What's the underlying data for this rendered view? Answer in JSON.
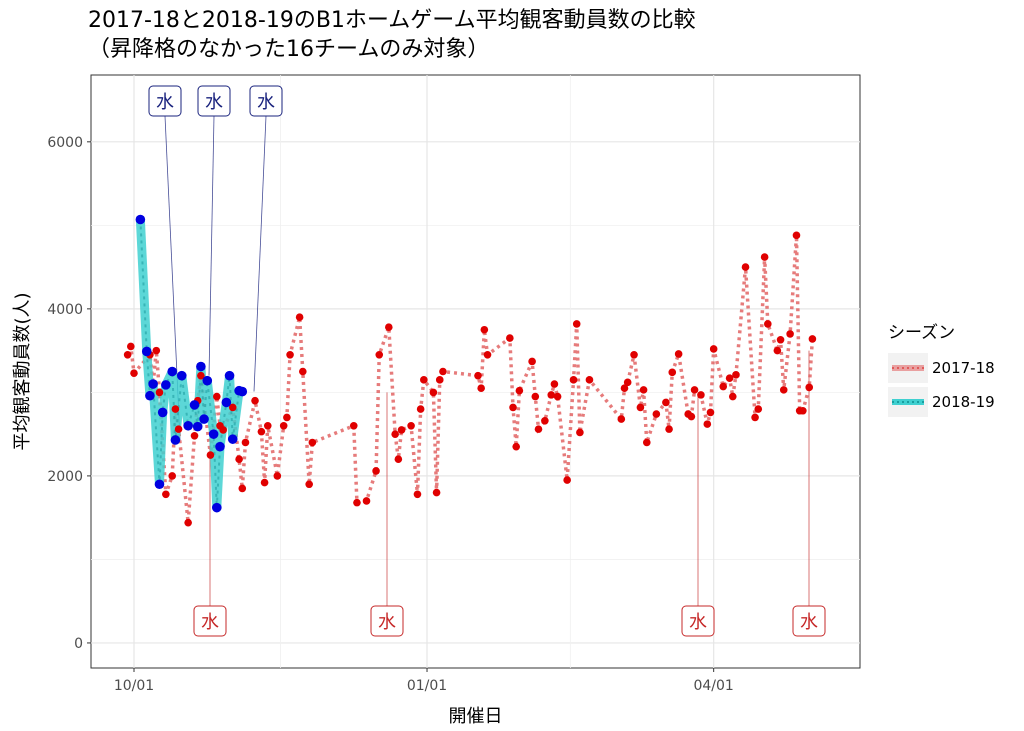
{
  "title_line1": "2017-18と2018-19のB1ホームゲーム平均観客動員数の比較",
  "title_line2": "（昇降格のなかった16チームのみ対象）",
  "chart_data": {
    "type": "line",
    "xlabel": "開催日",
    "ylabel": "平均観客動員数(人)",
    "xlim_days_label": "2017-18 season date axis",
    "x_ticks": [
      {
        "label": "10/01",
        "day": 0
      },
      {
        "label": "01/01",
        "day": 92
      },
      {
        "label": "04/01",
        "day": 182
      }
    ],
    "y_ticks": [
      0,
      2000,
      4000,
      6000
    ],
    "ylim": [
      -300,
      6800
    ],
    "grid": true,
    "legend_title": "シーズン",
    "legend_position": "right",
    "colors": {
      "s2017": "#e05a5a",
      "s2017_point": "#e00000",
      "s2018": "#3fd0d0",
      "s2018_point": "#0000e0"
    },
    "series": [
      {
        "name": "2017-18",
        "x": [
          "09/29",
          "09/30",
          "10/01",
          "10/06",
          "10/07",
          "10/08",
          "10/09",
          "10/11",
          "10/13",
          "10/14",
          "10/15",
          "10/18",
          "10/20",
          "10/21",
          "10/22",
          "10/25",
          "10/27",
          "10/28",
          "10/29",
          "11/01",
          "11/03",
          "11/04",
          "11/05",
          "11/08",
          "11/10",
          "11/11",
          "11/12",
          "11/15",
          "11/17",
          "11/18",
          "11/19",
          "11/22",
          "11/23",
          "11/25",
          "11/26",
          "12/09",
          "12/10",
          "12/13",
          "12/16",
          "12/17",
          "12/20",
          "12/22",
          "12/23",
          "12/24",
          "12/27",
          "12/29",
          "12/30",
          "12/31",
          "01/03",
          "01/04",
          "01/05",
          "01/06",
          "01/17",
          "01/18",
          "01/19",
          "01/20",
          "01/27",
          "01/28",
          "01/29",
          "01/30",
          "02/03",
          "02/04",
          "02/05",
          "02/07",
          "02/09",
          "02/10",
          "02/11",
          "02/14",
          "02/16",
          "02/17",
          "02/18",
          "02/21",
          "03/03",
          "03/04",
          "03/05",
          "03/07",
          "03/09",
          "03/10",
          "03/11",
          "03/14",
          "03/17",
          "03/18",
          "03/19",
          "03/21",
          "03/24",
          "03/25",
          "03/26",
          "03/28",
          "03/30",
          "03/31",
          "04/01",
          "04/04",
          "04/06",
          "04/07",
          "04/08",
          "04/11",
          "04/14",
          "04/15",
          "04/17",
          "04/18",
          "04/21",
          "04/22",
          "04/23",
          "04/25",
          "04/27",
          "04/28",
          "04/29",
          "05/01",
          "05/02"
        ],
        "values": [
          3450,
          3550,
          3230,
          3450,
          3100,
          3500,
          3000,
          1780,
          2000,
          2800,
          2560,
          1440,
          2480,
          2900,
          3200,
          2250,
          2950,
          2600,
          2550,
          2820,
          2200,
          1850,
          2400,
          2900,
          2530,
          1920,
          2600,
          2000,
          2600,
          2700,
          3450,
          3900,
          3250,
          1900,
          2400,
          2600,
          1680,
          1700,
          2060,
          3450,
          3780,
          2500,
          2200,
          2550,
          2600,
          1780,
          2800,
          3150,
          3000,
          1800,
          3150,
          3250,
          3200,
          3050,
          3750,
          3450,
          3650,
          2820,
          2350,
          3020,
          3370,
          2950,
          2560,
          2660,
          2970,
          3100,
          2950,
          1950,
          3150,
          3820,
          2520,
          3150,
          2680,
          3050,
          3120,
          3450,
          2820,
          3030,
          2400,
          2740,
          2880,
          2560,
          3240,
          3460,
          2740,
          2710,
          3030,
          2970,
          2620,
          2760,
          3520,
          3070,
          3170,
          2950,
          3210,
          4500,
          2700,
          2800,
          4620,
          3820,
          3500,
          3630,
          3030,
          3700,
          4880,
          2780,
          2780,
          3060,
          3640
        ]
      },
      {
        "name": "2018-19",
        "x": [
          "10/03",
          "10/05",
          "10/06",
          "10/07",
          "10/09",
          "10/10",
          "10/11",
          "10/13",
          "10/14",
          "10/16",
          "10/18",
          "10/20",
          "10/21",
          "10/22",
          "10/23",
          "10/24",
          "10/26",
          "10/27",
          "10/28",
          "10/30",
          "10/31",
          "11/01",
          "11/03",
          "11/04"
        ],
        "values": [
          5070,
          3490,
          2960,
          3100,
          1900,
          2760,
          3090,
          3250,
          2430,
          3200,
          2600,
          2850,
          2590,
          3310,
          2680,
          3140,
          2500,
          1620,
          2350,
          2880,
          3200,
          2440,
          3020,
          3010
        ]
      }
    ],
    "annotations": [
      {
        "text": "水",
        "season": "2018-19"
      },
      {
        "text": "水",
        "season": "2018-19"
      },
      {
        "text": "水",
        "season": "2018-19"
      },
      {
        "text": "水",
        "season": "2017-18"
      },
      {
        "text": "水",
        "season": "2017-18"
      },
      {
        "text": "水",
        "season": "2017-18"
      },
      {
        "text": "水",
        "season": "2017-18"
      }
    ]
  }
}
